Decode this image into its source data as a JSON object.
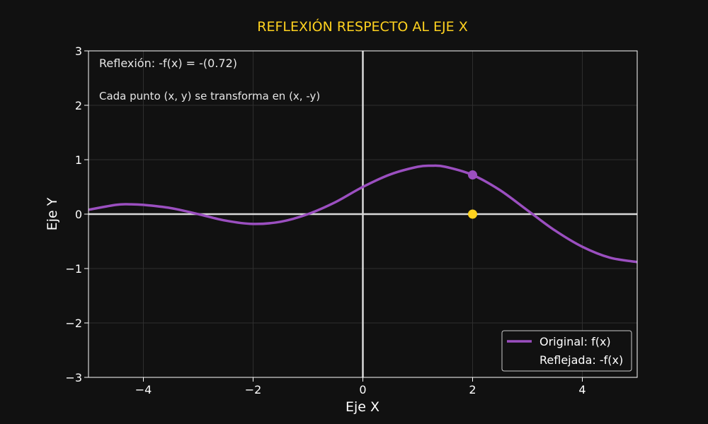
{
  "chart_data": {
    "type": "line",
    "title": "REFLEXIÓN RESPECTO AL EJE X",
    "xlabel": "Eje X",
    "ylabel": "Eje Y",
    "xlim": [
      -5,
      5
    ],
    "ylim": [
      -3,
      3
    ],
    "xticks": [
      -4,
      -2,
      0,
      2,
      4
    ],
    "yticks": [
      -3,
      -2,
      -1,
      0,
      1,
      2,
      3
    ],
    "grid": true,
    "legend_position": "bottom-right",
    "annotations": [
      "Reflexión: -f(x) = -(0.72)",
      "Cada punto (x, y) se transforma en (x, -y)"
    ],
    "series": [
      {
        "name": "Original: f(x)",
        "color": "#9b4fc0",
        "x": [
          -5,
          -4.5,
          -4.25,
          -4,
          -3.5,
          -3,
          -2.5,
          -2,
          -1.5,
          -1,
          -0.5,
          0,
          0.5,
          1,
          1.25,
          1.5,
          2,
          2.5,
          3,
          3.5,
          4,
          4.5,
          5
        ],
        "y": [
          0.08,
          0.17,
          0.18,
          0.17,
          0.11,
          0.0,
          -0.12,
          -0.18,
          -0.14,
          0.0,
          0.22,
          0.5,
          0.73,
          0.87,
          0.89,
          0.87,
          0.72,
          0.44,
          0.07,
          -0.3,
          -0.6,
          -0.8,
          -0.88
        ]
      },
      {
        "name": "Reflejada: -f(x)",
        "color": "#ffd21f",
        "x": [],
        "y": []
      }
    ],
    "points": [
      {
        "x": 2,
        "y": 0.72,
        "color": "#9b4fc0"
      },
      {
        "x": 2,
        "y": 0,
        "color": "#ffd21f"
      }
    ]
  }
}
